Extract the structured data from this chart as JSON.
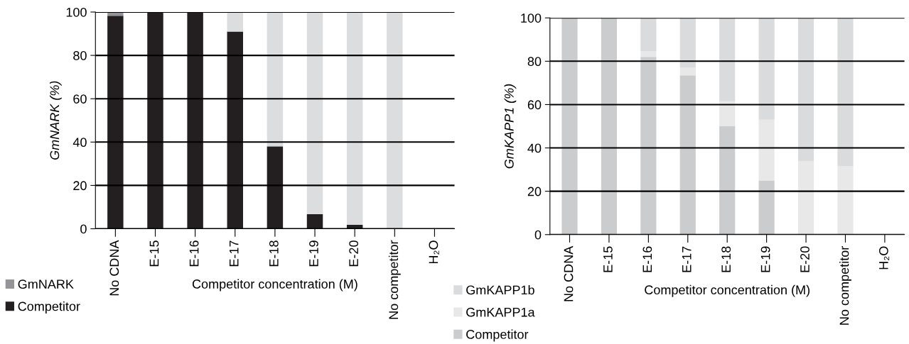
{
  "chart_data": [
    {
      "type": "bar",
      "stacked": true,
      "xlabel": "Competitor concentration (M)",
      "ylabel": "GmNARK (%)",
      "categories": [
        "No CDNA",
        "E-15",
        "E-16",
        "E-17",
        "E-18",
        "E-19",
        "E-20",
        "No competitor",
        "H₂O"
      ],
      "ylim": [
        0,
        100
      ],
      "yticks": [
        0,
        20,
        40,
        60,
        80,
        100
      ],
      "grid": "y",
      "legend": "bottom left",
      "series": [
        {
          "name": "Competitor",
          "color": "#231f20",
          "values": [
            98.3,
            100,
            100,
            91,
            37.8,
            6.7,
            1.8,
            0,
            0
          ]
        },
        {
          "name": "GmNARK",
          "color": "#939598",
          "values": [
            1.7,
            0,
            0,
            0,
            0.5,
            0,
            0,
            0,
            0
          ]
        },
        {
          "color": "#dcdddf",
          "values": [
            0,
            0,
            0,
            9,
            61.7,
            93.3,
            98.2,
            100,
            0
          ]
        }
      ]
    },
    {
      "type": "bar",
      "stacked": true,
      "xlabel": "Competitor concentration (M)",
      "ylabel": "GmKAPP1 (%)",
      "categories": [
        "No CDNA",
        "E-15",
        "E-16",
        "E-17",
        "E-18",
        "E-19",
        "E-20",
        "No competitor",
        "H₂O"
      ],
      "ylim": [
        0,
        100
      ],
      "yticks": [
        0,
        20,
        40,
        60,
        80,
        100
      ],
      "grid": "y",
      "legend": "bottom left",
      "series": [
        {
          "name": "Competitor",
          "color": "#cbcccd",
          "values": [
            100,
            100,
            82,
            73.5,
            50,
            25,
            0,
            0,
            0
          ]
        },
        {
          "name": "GmKAPP1a",
          "color": "#e8e8e9",
          "values": [
            0,
            0,
            2.5,
            3.5,
            11.5,
            28,
            34,
            31.5,
            0
          ]
        },
        {
          "name": "GmKAPP1b",
          "color": "#dadbdc",
          "values": [
            0,
            0,
            15.5,
            23,
            38.5,
            47,
            66,
            68.5,
            0
          ]
        }
      ]
    }
  ]
}
